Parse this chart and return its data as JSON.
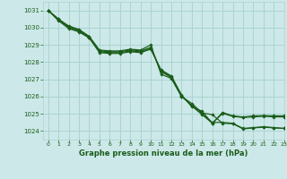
{
  "title": "Graphe pression niveau de la mer (hPa)",
  "background_color": "#cce8e8",
  "grid_color": "#aad4d0",
  "line_color": "#1a5c1a",
  "xlim": [
    -0.5,
    23
  ],
  "ylim": [
    1023.5,
    1031.5
  ],
  "yticks": [
    1024,
    1025,
    1026,
    1027,
    1028,
    1029,
    1030,
    1031
  ],
  "xticks": [
    0,
    1,
    2,
    3,
    4,
    5,
    6,
    7,
    8,
    9,
    10,
    11,
    12,
    13,
    14,
    15,
    16,
    17,
    18,
    19,
    20,
    21,
    22,
    23
  ],
  "series": [
    [
      1031.0,
      1030.5,
      1030.1,
      1029.9,
      1029.5,
      1028.7,
      1028.65,
      1028.65,
      1028.75,
      1028.7,
      1029.0,
      1027.3,
      1027.05,
      1026.0,
      1025.6,
      1025.05,
      1024.95,
      1024.45,
      1024.42,
      1024.12,
      1024.18,
      1024.22,
      1024.18,
      1024.15
    ],
    [
      1031.0,
      1030.5,
      1030.05,
      1029.85,
      1029.45,
      1028.65,
      1028.6,
      1028.6,
      1028.7,
      1028.65,
      1028.85,
      1027.45,
      1027.1,
      1026.0,
      1025.5,
      1025.0,
      1024.5,
      1024.5,
      1024.45,
      1024.15,
      1024.2,
      1024.25,
      1024.2,
      1024.15
    ],
    [
      1031.0,
      1030.45,
      1030.0,
      1029.8,
      1029.42,
      1028.6,
      1028.55,
      1028.55,
      1028.65,
      1028.6,
      1028.8,
      1027.5,
      1027.15,
      1026.05,
      1025.45,
      1024.95,
      1024.45,
      1025.02,
      1024.85,
      1024.78,
      1024.82,
      1024.85,
      1024.82,
      1024.82
    ],
    [
      1031.0,
      1030.4,
      1029.95,
      1029.75,
      1029.4,
      1028.55,
      1028.5,
      1028.5,
      1028.6,
      1028.55,
      1028.75,
      1027.55,
      1027.2,
      1026.1,
      1025.4,
      1025.15,
      1024.45,
      1025.08,
      1024.88,
      1024.82,
      1024.88,
      1024.9,
      1024.88,
      1024.88
    ]
  ]
}
